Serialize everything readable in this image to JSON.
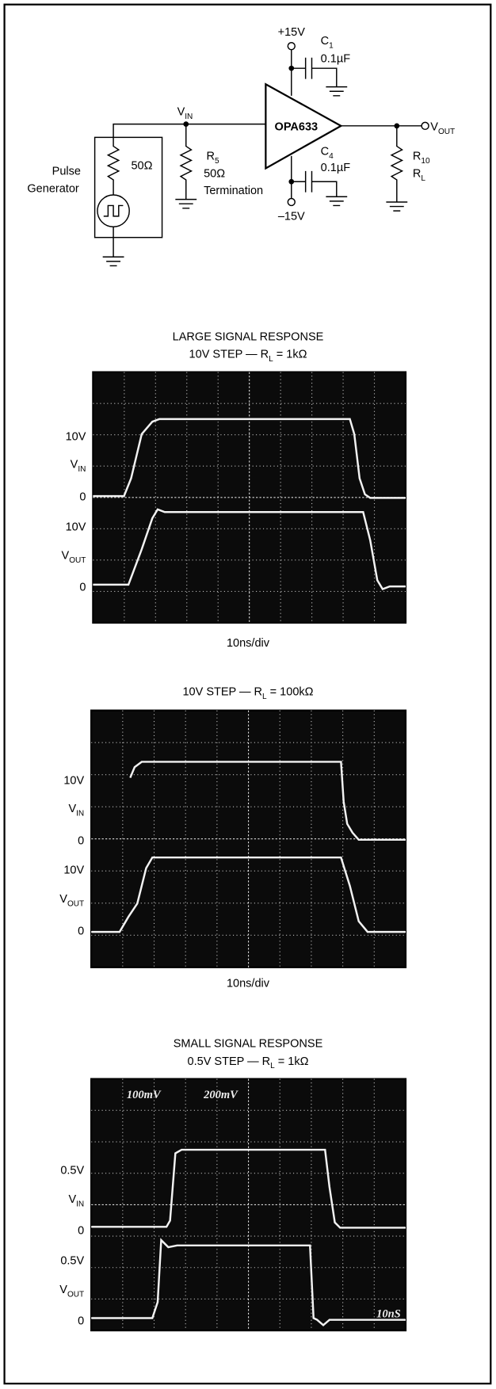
{
  "circuit": {
    "supply_pos": "+15V",
    "c1": {
      "main": "C",
      "sub": "1"
    },
    "c1_value": "0.1µF",
    "vin": {
      "main": "V",
      "sub": "IN"
    },
    "opamp": "OPA633",
    "vout": {
      "main": "V",
      "sub": "OUT"
    },
    "generator": [
      "Pulse",
      "Generator"
    ],
    "generator_r": "50Ω",
    "r5": {
      "main": "R",
      "sub": "5"
    },
    "r5_value": "50Ω",
    "termination": "Termination",
    "c4": {
      "main": "C",
      "sub": "4"
    },
    "c4_value": "0.1µF",
    "supply_neg": "–15V",
    "r10": {
      "main": "R",
      "sub": "10"
    },
    "rl": {
      "main": "R",
      "sub": "L"
    }
  },
  "plots": [
    {
      "title": "LARGE SIGNAL RESPONSE",
      "subtitle": {
        "before": "10V STEP — R",
        "sub": "L",
        "after": " = 1kΩ"
      },
      "labels": [
        "10V",
        {
          "main": "V",
          "sub": "IN"
        },
        "0",
        "10V",
        {
          "main": "V",
          "sub": "OUT"
        },
        "0"
      ],
      "xlabel": "10ns/div"
    },
    {
      "subtitle": {
        "before": "10V STEP — R",
        "sub": "L",
        "after": " = 100kΩ"
      },
      "labels": [
        "10V",
        {
          "main": "V",
          "sub": "IN"
        },
        "0",
        "10V",
        {
          "main": "V",
          "sub": "OUT"
        },
        "0"
      ],
      "xlabel": "10ns/div"
    },
    {
      "title": "SMALL SIGNAL RESPONSE",
      "subtitle": {
        "before": "0.5V STEP — R",
        "sub": "L",
        "after": " = 1kΩ"
      },
      "labels": [
        "0.5V",
        {
          "main": "V",
          "sub": "IN"
        },
        "0",
        "0.5V",
        {
          "main": "V",
          "sub": "OUT"
        },
        "0"
      ],
      "screen_text": [
        "100mV",
        "200mV",
        "10nS"
      ]
    }
  ]
}
